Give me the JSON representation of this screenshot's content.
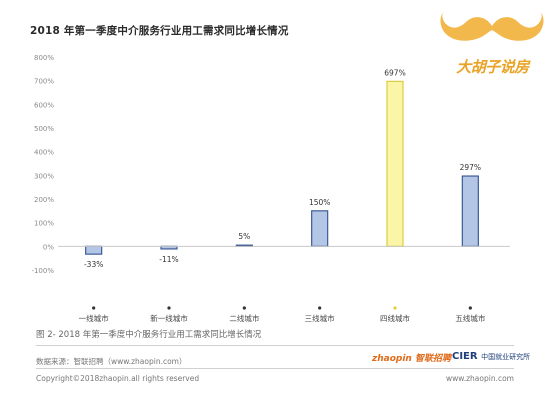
{
  "title": "2018 年第一季度中介服务行业用工需求同比增长情况",
  "logo": {
    "text": "大胡子说房",
    "accent": "#f2b84b"
  },
  "caption": "图 2- 2018 年第一季度中介服务行业用工需求同比增长情况",
  "footer": {
    "source": "数据来源：智联招聘（www.zhaopin.com）",
    "copyright": "Copyright©2018zhaopin.all rights reserved",
    "url": "www.zhaopin.com",
    "brand_zhaopin": "zhaopin 智联招聘",
    "brand_cier": "CIER",
    "brand_cier_cn": "中国就业研究所"
  },
  "chart_data": {
    "type": "bar",
    "title": "2018 年第一季度中介服务行业用工需求同比增长情况",
    "categories": [
      "一线城市",
      "新一线城市",
      "二线城市",
      "三线城市",
      "四线城市",
      "五线城市"
    ],
    "values": [
      -33,
      -11,
      5,
      150,
      697,
      297
    ],
    "data_labels": [
      "-33%",
      "-11%",
      "5%",
      "150%",
      "697%",
      "297%"
    ],
    "highlight_index": 4,
    "ylim": [
      -100,
      800
    ],
    "yticks": [
      -100,
      0,
      100,
      200,
      300,
      400,
      500,
      600,
      700,
      800
    ],
    "ytick_labels": [
      "-100%",
      "0%",
      "100%",
      "200%",
      "300%",
      "400%",
      "500%",
      "600%",
      "700%",
      "800%"
    ],
    "grid": false,
    "colors": {
      "bar_fill": "#b3c6e6",
      "bar_stroke": "#3d5a96",
      "highlight_fill": "#fbf5a8",
      "highlight_stroke": "#dccd3e",
      "marker": "#333333",
      "highlight_marker": "#e6cf2e"
    }
  }
}
